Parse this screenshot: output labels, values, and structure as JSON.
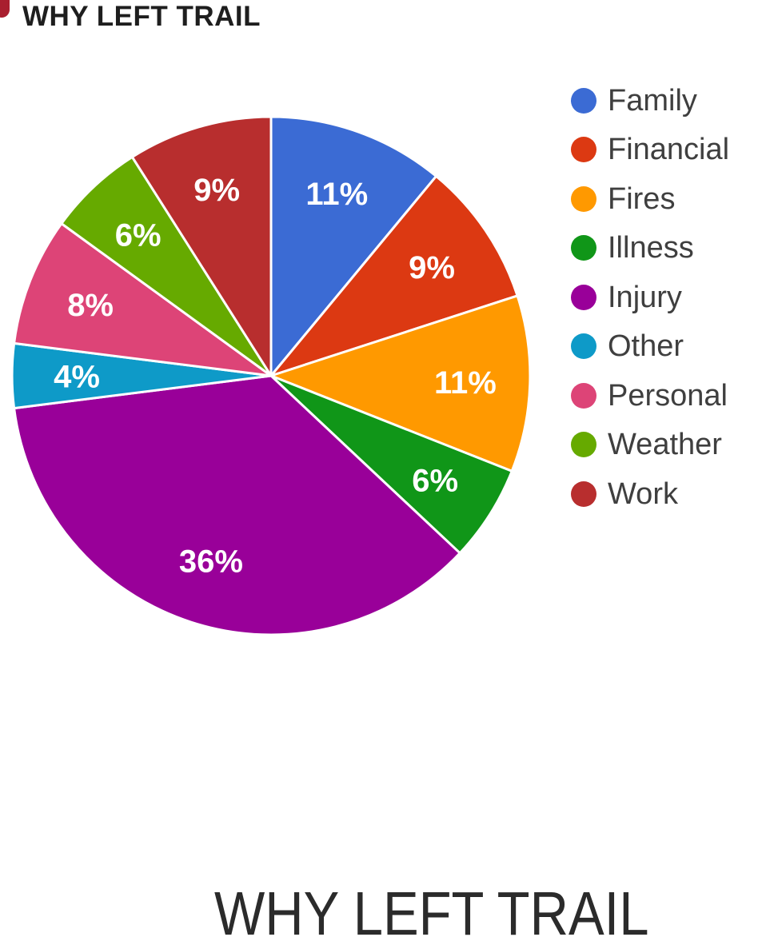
{
  "header": {
    "title": "WHY LEFT TRAIL"
  },
  "footer": {
    "title": "WHY LEFT TRAIL"
  },
  "logo": {
    "color": "#A91F2F"
  },
  "chart_data": {
    "type": "pie",
    "title": "WHY LEFT TRAIL",
    "legend_position": "right",
    "direction": "clockwise",
    "start_angle_deg": 0,
    "slice_border_color": "#FFFFFF",
    "label_color": "#FFFFFF",
    "categories": [
      "Family",
      "Financial",
      "Fires",
      "Illness",
      "Injury",
      "Other",
      "Personal",
      "Weather",
      "Work"
    ],
    "values": [
      11,
      9,
      11,
      6,
      36,
      4,
      8,
      6,
      9
    ],
    "slices": [
      {
        "label": "Family",
        "value": 11,
        "display": "11%",
        "color": "#3B6BD4"
      },
      {
        "label": "Financial",
        "value": 9,
        "display": "9%",
        "color": "#DC3912"
      },
      {
        "label": "Fires",
        "value": 11,
        "display": "11%",
        "color": "#FF9900"
      },
      {
        "label": "Illness",
        "value": 6,
        "display": "6%",
        "color": "#109618"
      },
      {
        "label": "Injury",
        "value": 36,
        "display": "36%",
        "color": "#990099"
      },
      {
        "label": "Other",
        "value": 4,
        "display": "4%",
        "color": "#0E9AC8"
      },
      {
        "label": "Personal",
        "value": 8,
        "display": "8%",
        "color": "#DD4477"
      },
      {
        "label": "Weather",
        "value": 6,
        "display": "6%",
        "color": "#66AA00"
      },
      {
        "label": "Work",
        "value": 9,
        "display": "9%",
        "color": "#B82E2E"
      }
    ]
  }
}
